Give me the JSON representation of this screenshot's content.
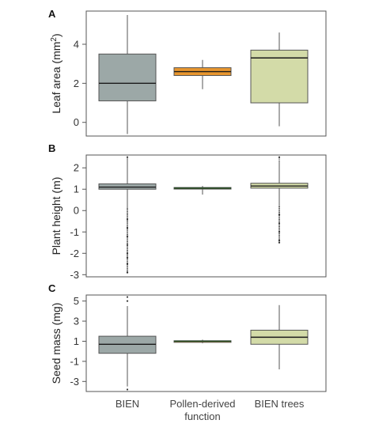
{
  "chart_data": [
    {
      "type": "box",
      "panel_label": "A",
      "ylabel": "Leaf area (mm",
      "ylabel_superscript": "2",
      "ylabel_suffix": ")",
      "ylim": [
        -0.7,
        5.7
      ],
      "yticks": [
        0,
        2,
        4
      ],
      "categories": [
        "BIEN",
        "Pollen-derived function",
        "BIEN trees"
      ],
      "boxes": [
        {
          "whisker_low": -0.6,
          "q1": 1.1,
          "median": 2.0,
          "q3": 3.5,
          "whisker_high": 5.5,
          "outliers": []
        },
        {
          "whisker_low": 1.7,
          "q1": 2.4,
          "median": 2.6,
          "q3": 2.8,
          "whisker_high": 3.2,
          "outliers": []
        },
        {
          "whisker_low": -0.2,
          "q1": 1.0,
          "median": 3.3,
          "q3": 3.7,
          "whisker_high": 4.6,
          "outliers": []
        }
      ]
    },
    {
      "type": "box",
      "panel_label": "B",
      "ylabel": "Plant height (m)",
      "ylim": [
        -3.1,
        2.6
      ],
      "yticks": [
        2,
        1,
        0,
        -1,
        -2,
        -3
      ],
      "categories": [
        "BIEN",
        "Pollen-derived function",
        "BIEN trees"
      ],
      "boxes": [
        {
          "whisker_low": 0.1,
          "q1": 1.0,
          "median": 1.1,
          "q3": 1.25,
          "whisker_high": 2.4,
          "outliers": [
            2.5,
            -0.4,
            -0.8,
            -1.2,
            -1.6,
            -2.0,
            -2.2,
            -2.5,
            -2.9
          ]
        },
        {
          "whisker_low": 0.75,
          "q1": 1.02,
          "median": 1.05,
          "q3": 1.08,
          "whisker_high": 1.15,
          "outliers": []
        },
        {
          "whisker_low": 0.2,
          "q1": 1.05,
          "median": 1.15,
          "q3": 1.28,
          "whisker_high": 2.3,
          "outliers": [
            2.5,
            -0.2,
            -0.6,
            -1.0,
            -1.4,
            -1.5
          ]
        }
      ]
    },
    {
      "type": "box",
      "panel_label": "C",
      "ylabel": "Seed mass (mg)",
      "ylim": [
        -4.0,
        5.6
      ],
      "yticks": [
        5,
        3,
        1,
        -1,
        -3
      ],
      "categories": [
        "BIEN",
        "Pollen-derived function",
        "BIEN trees"
      ],
      "boxes": [
        {
          "whisker_low": -3.5,
          "q1": -0.2,
          "median": 0.7,
          "q3": 1.5,
          "whisker_high": 4.5,
          "outliers": [
            5.0,
            5.4,
            -3.8
          ]
        },
        {
          "whisker_low": 0.8,
          "q1": 0.95,
          "median": 1.0,
          "q3": 1.05,
          "whisker_high": 1.15,
          "outliers": []
        },
        {
          "whisker_low": -1.8,
          "q1": 0.7,
          "median": 1.4,
          "q3": 2.1,
          "whisker_high": 4.6,
          "outliers": []
        }
      ]
    }
  ],
  "x_categories": [
    {
      "lines": [
        "BIEN"
      ]
    },
    {
      "lines": [
        "Pollen-derived",
        "function"
      ]
    },
    {
      "lines": [
        "BIEN trees"
      ]
    }
  ],
  "colors": {
    "BIEN": "#9ca8a7",
    "Pollen-derived function": "#e8962e",
    "BIEN trees": "#d3dba8",
    "median_line": "#1a1a1a",
    "pollen_median_B_C": "#1f4a1f",
    "outlier": "#333333",
    "axis_frame": "#555555"
  }
}
